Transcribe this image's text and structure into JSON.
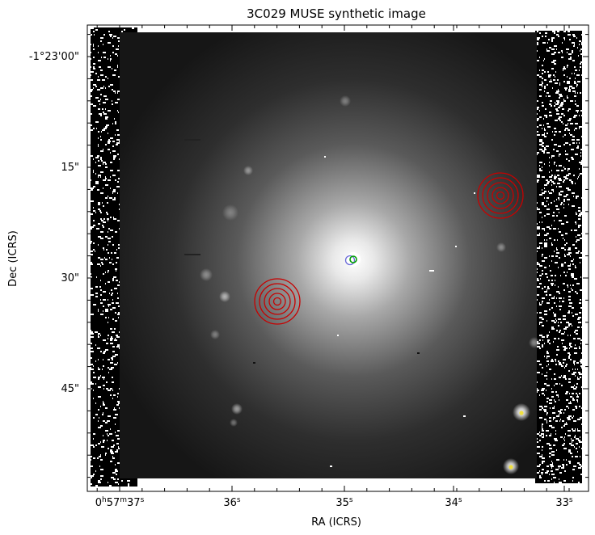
{
  "title": "3C029 MUSE synthetic image",
  "xlabel": "RA (ICRS)",
  "ylabel": "Dec (ICRS)",
  "x_ticks": [
    {
      "h": "0",
      "hu": "h",
      "m": "57",
      "mu": "m",
      "s": "37",
      "su": "s",
      "full": true
    },
    {
      "s": "36",
      "su": "s"
    },
    {
      "s": "35",
      "su": "s"
    },
    {
      "s": "34",
      "su": "s"
    },
    {
      "s": "33",
      "su": "s"
    }
  ],
  "y_ticks": [
    "-1°23'00\"",
    "15\"",
    "30\"",
    "45\""
  ],
  "colors": {
    "region_red": "#c80000",
    "marker_blue": "#6a6ad8",
    "marker_green": "#00a000",
    "star_yellow": "#f0e040"
  }
}
